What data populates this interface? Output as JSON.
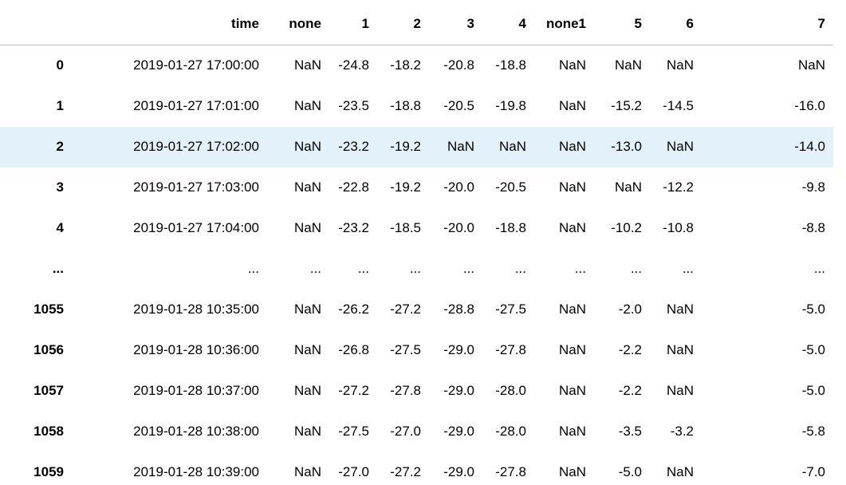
{
  "table": {
    "header": [
      "time",
      "none",
      "1",
      "2",
      "3",
      "4",
      "none1",
      "5",
      "6",
      "7"
    ],
    "rows": [
      [
        "0",
        "2019-01-27 17:00:00",
        "NaN",
        "-24.8",
        "-18.2",
        "-20.8",
        "-18.8",
        "NaN",
        "NaN",
        "NaN",
        "NaN"
      ],
      [
        "1",
        "2019-01-27 17:01:00",
        "NaN",
        "-23.5",
        "-18.8",
        "-20.5",
        "-19.8",
        "NaN",
        "-15.2",
        "-14.5",
        "-16.0"
      ],
      [
        "2",
        "2019-01-27 17:02:00",
        "NaN",
        "-23.2",
        "-19.2",
        "NaN",
        "NaN",
        "NaN",
        "-13.0",
        "NaN",
        "-14.0"
      ],
      [
        "3",
        "2019-01-27 17:03:00",
        "NaN",
        "-22.8",
        "-19.2",
        "-20.0",
        "-20.5",
        "NaN",
        "NaN",
        "-12.2",
        "-9.8"
      ],
      [
        "4",
        "2019-01-27 17:04:00",
        "NaN",
        "-23.2",
        "-18.5",
        "-20.0",
        "-18.8",
        "NaN",
        "-10.2",
        "-10.8",
        "-8.8"
      ],
      [
        "...",
        "...",
        "...",
        "...",
        "...",
        "...",
        "...",
        "...",
        "...",
        "...",
        "..."
      ],
      [
        "1055",
        "2019-01-28 10:35:00",
        "NaN",
        "-26.2",
        "-27.2",
        "-28.8",
        "-27.5",
        "NaN",
        "-2.0",
        "NaN",
        "-5.0"
      ],
      [
        "1056",
        "2019-01-28 10:36:00",
        "NaN",
        "-26.8",
        "-27.5",
        "-29.0",
        "-27.8",
        "NaN",
        "-2.2",
        "NaN",
        "-5.0"
      ],
      [
        "1057",
        "2019-01-28 10:37:00",
        "NaN",
        "-27.2",
        "-27.8",
        "-29.0",
        "-28.0",
        "NaN",
        "-2.2",
        "NaN",
        "-5.0"
      ],
      [
        "1058",
        "2019-01-28 10:38:00",
        "NaN",
        "-27.5",
        "-27.0",
        "-29.0",
        "-28.0",
        "NaN",
        "-3.5",
        "-3.2",
        "-5.8"
      ],
      [
        "1059",
        "2019-01-28 10:39:00",
        "NaN",
        "-27.0",
        "-27.2",
        "-29.0",
        "-27.8",
        "NaN",
        "-5.0",
        "NaN",
        "-7.0"
      ]
    ]
  }
}
